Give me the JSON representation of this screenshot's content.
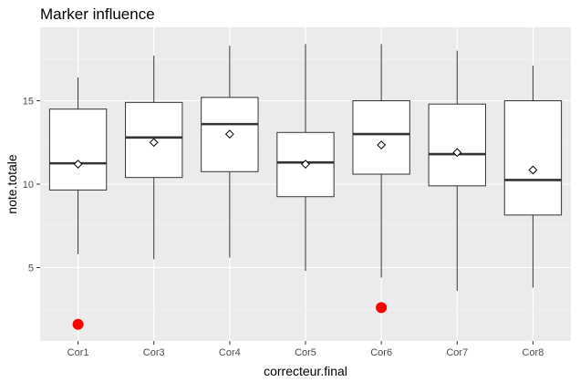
{
  "chart_data": {
    "type": "box",
    "title": "Marker influence",
    "xlabel": "correcteur.final",
    "ylabel": "note.totale",
    "ylim": [
      0.6,
      19.4
    ],
    "yticks": [
      5,
      10,
      15
    ],
    "grid": true,
    "legend": "none",
    "colors": {
      "panel": "#ebebeb",
      "grid_major": "#ffffff",
      "grid_minor": "#f5f5f5",
      "box_fill": "#ffffff",
      "box_stroke": "#333333",
      "outlier": "#ff0000"
    },
    "categories": [
      "Cor1",
      "Cor3",
      "Cor4",
      "Cor5",
      "Cor6",
      "Cor7",
      "Cor8"
    ],
    "boxes": [
      {
        "category": "Cor1",
        "whisker_low": 5.8,
        "q1": 9.65,
        "median": 11.25,
        "q3": 14.5,
        "whisker_high": 16.4,
        "mean": 11.2,
        "outliers": [
          1.6
        ]
      },
      {
        "category": "Cor3",
        "whisker_low": 5.5,
        "q1": 10.4,
        "median": 12.8,
        "q3": 14.9,
        "whisker_high": 17.7,
        "mean": 12.5,
        "outliers": []
      },
      {
        "category": "Cor4",
        "whisker_low": 5.6,
        "q1": 10.75,
        "median": 13.6,
        "q3": 15.2,
        "whisker_high": 18.3,
        "mean": 13.0,
        "outliers": []
      },
      {
        "category": "Cor5",
        "whisker_low": 4.8,
        "q1": 9.25,
        "median": 11.3,
        "q3": 13.1,
        "whisker_high": 18.4,
        "mean": 11.2,
        "outliers": []
      },
      {
        "category": "Cor6",
        "whisker_low": 4.4,
        "q1": 10.6,
        "median": 13.0,
        "q3": 15.0,
        "whisker_high": 18.4,
        "mean": 12.35,
        "outliers": [
          2.6
        ]
      },
      {
        "category": "Cor7",
        "whisker_low": 3.6,
        "q1": 9.9,
        "median": 11.8,
        "q3": 14.8,
        "whisker_high": 18.0,
        "mean": 11.9,
        "outliers": []
      },
      {
        "category": "Cor8",
        "whisker_low": 3.8,
        "q1": 8.15,
        "median": 10.25,
        "q3": 15.0,
        "whisker_high": 17.1,
        "mean": 10.85,
        "outliers": []
      }
    ]
  }
}
